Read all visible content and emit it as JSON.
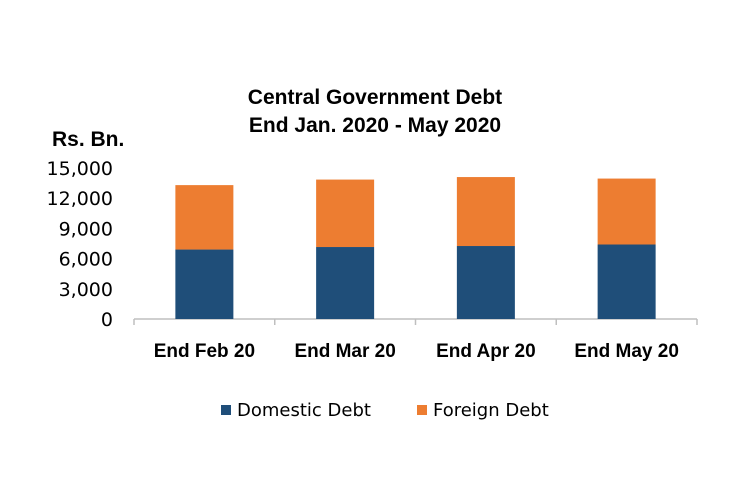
{
  "chart_data": {
    "type": "bar",
    "stacked": true,
    "title": [
      "Central Government Debt",
      "End Jan. 2020 - May 2020"
    ],
    "ylabel": "Rs. Bn.",
    "xlabel": "",
    "categories": [
      "End Feb 20",
      "End Mar 20",
      "End Apr 20",
      "End May 20"
    ],
    "series": [
      {
        "name": "Domestic Debt",
        "color": "#1f4e79",
        "values": [
          6900,
          7150,
          7250,
          7400
        ]
      },
      {
        "name": "Foreign Debt",
        "color": "#ed7d31",
        "values": [
          6400,
          6700,
          6850,
          6550
        ]
      }
    ],
    "ylim": [
      0,
      15000
    ],
    "yticks": [
      0,
      3000,
      6000,
      9000,
      12000,
      15000
    ],
    "ytick_labels": [
      "0",
      "3,000",
      "6,000",
      "9,000",
      "12,000",
      "15,000"
    ],
    "grid": false,
    "legend_position": "bottom"
  }
}
